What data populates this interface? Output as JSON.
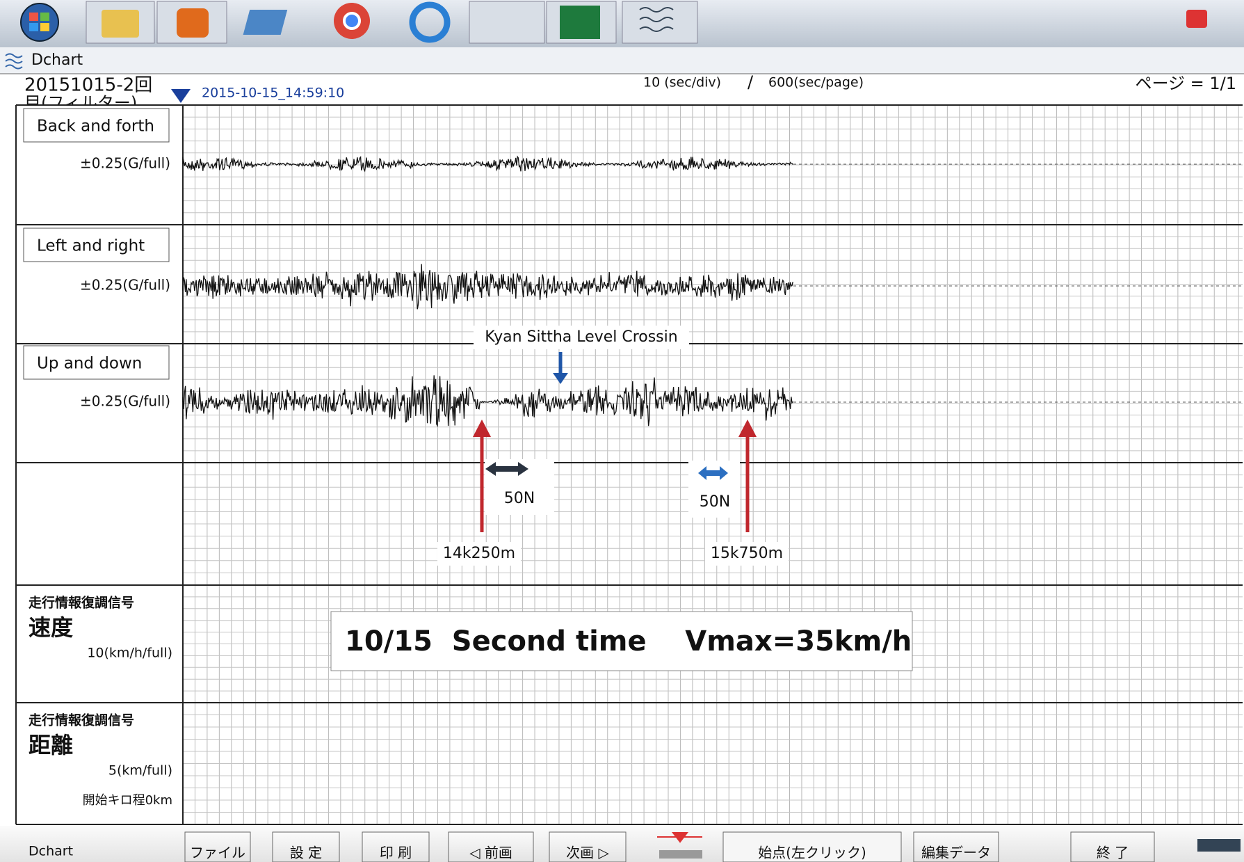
{
  "window": {
    "title": "Dchart"
  },
  "header": {
    "file_line1": "20151015-2回",
    "file_line2": "目(フィルター)",
    "start_time": "2015-10-15_14:59:10",
    "time_scale": "10 (sec/div)",
    "separator": "/",
    "page_scale": "600(sec/page)",
    "page": "ページ = 1/1"
  },
  "channels": [
    {
      "name": "Back and  forth",
      "range": "±0.25(G/full)"
    },
    {
      "name": "Left and right",
      "range": "±0.25(G/full)"
    },
    {
      "name": "Up and down",
      "range": "±0.25(G/full)"
    },
    {
      "group": "走行情報復調信号",
      "name": "速度",
      "range": "10(km/h/full)"
    },
    {
      "group": "走行情報復調信号",
      "name": "距離",
      "range": "5(km/full)",
      "note": "開始キロ程0km"
    }
  ],
  "annotations": {
    "crossing": "Kyan Sittha Level Crossin",
    "force_1": "50N",
    "force_2": "50N",
    "km_start": "14k250m",
    "km_end": "15k750m",
    "summary": "10/15  Second time    Vmax=35km/h"
  },
  "toolbar": {
    "app": "Dchart",
    "buttons": [
      "ファイル",
      "設 定",
      "印 刷",
      "◁ 前画",
      "次画 ▷",
      "始点(左クリック)",
      "編集データ",
      "終 了"
    ]
  }
}
